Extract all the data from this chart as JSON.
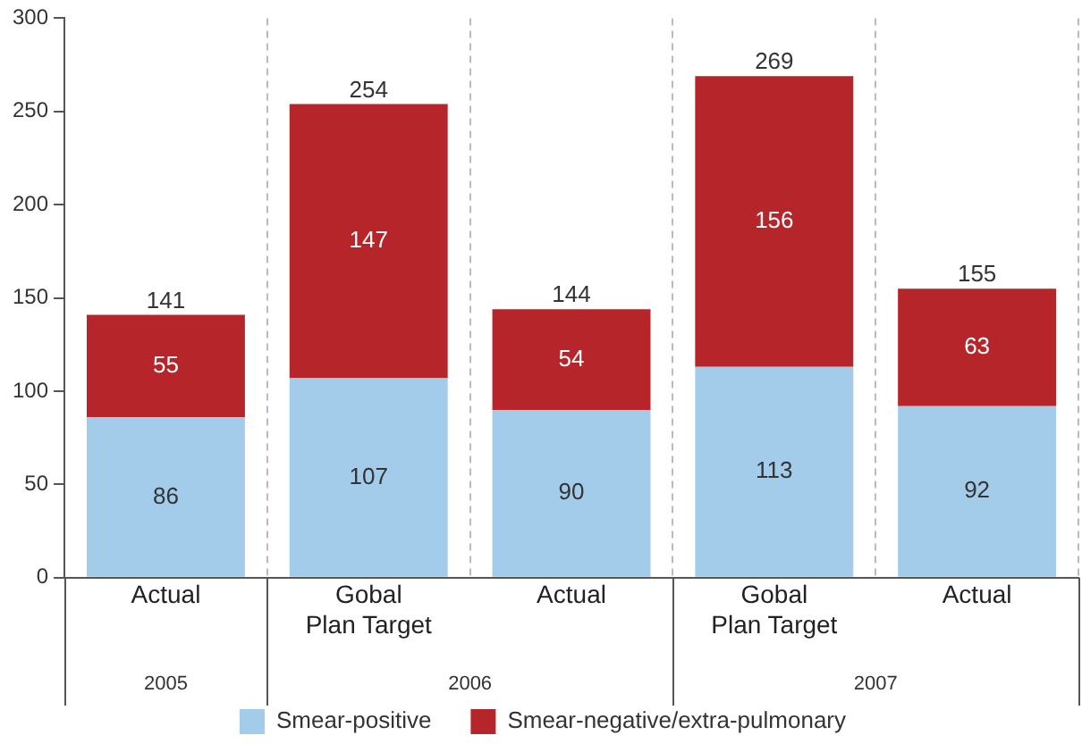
{
  "chart_data": {
    "type": "bar",
    "stacked": true,
    "categories": [
      "Actual",
      "Gobal Plan Target",
      "Actual",
      "Gobal Plan Target",
      "Actual"
    ],
    "series": [
      {
        "name": "Smear-positive",
        "color": "#a3cbea",
        "values": [
          86,
          107,
          90,
          113,
          92
        ]
      },
      {
        "name": "Smear-negative/extra-pulmonary",
        "color": "#b5252a",
        "values": [
          55,
          147,
          54,
          156,
          63
        ]
      }
    ],
    "totals": [
      "141",
      "254",
      "144",
      "269",
      "155"
    ],
    "data_labels": true,
    "ylim": [
      0,
      300
    ],
    "yticks": [
      0,
      50,
      100,
      150,
      200,
      250,
      300
    ],
    "grid": "x",
    "legend": "bottom",
    "annotations": [
      "2005",
      "2006",
      "2007"
    ]
  }
}
